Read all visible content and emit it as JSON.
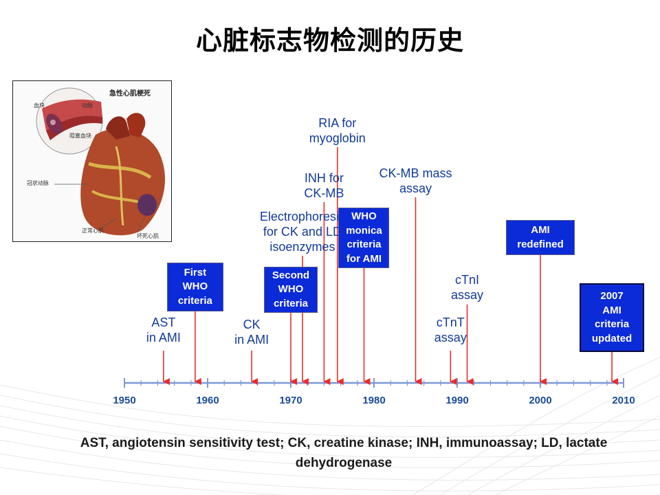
{
  "title": "心脏标志物检测的历史",
  "illustration": {
    "heading": "急性心肌梗死",
    "labels": {
      "blood_clot": "血块",
      "artery_wall": "动脉",
      "plaque": "阻塞血块",
      "coronary_artery": "冠状动脉",
      "healthy_muscle": "正常心肌",
      "damaged_muscle": "坏死心肌"
    }
  },
  "timeline": {
    "axis": {
      "start": 1950,
      "end": 2010,
      "ticks": [
        "1950",
        "1960",
        "1970",
        "1980",
        "1990",
        "2000",
        "2010"
      ]
    },
    "colors": {
      "axis": "#7a9ad6",
      "arrow": "#ee2b2b",
      "text": "#123a9a",
      "box_fill": "#0b2bd8",
      "box_text": "#ffffff"
    },
    "events": [
      {
        "id": "ast",
        "year": 1954.7,
        "style": "text",
        "lines": [
          "AST",
          "in AMI"
        ]
      },
      {
        "id": "first-who",
        "year": 1958.5,
        "style": "box",
        "lines": [
          "First",
          "WHO",
          "criteria"
        ]
      },
      {
        "id": "ck",
        "year": 1965.3,
        "style": "text",
        "lines": [
          "CK",
          "in AMI"
        ]
      },
      {
        "id": "second-who",
        "year": 1970.0,
        "style": "box",
        "lines": [
          "Second",
          "WHO",
          "criteria"
        ]
      },
      {
        "id": "electrophoresis",
        "year": 1971.4,
        "style": "text",
        "lines": [
          "Electrophoresis",
          "for CK and LD",
          "isoenzymes"
        ]
      },
      {
        "id": "inh-ckmb",
        "year": 1974.0,
        "style": "text",
        "lines": [
          "INH for",
          "CK-MB"
        ]
      },
      {
        "id": "ria-myoglobin",
        "year": 1975.6,
        "style": "text",
        "lines": [
          "RIA for",
          "myoglobin"
        ]
      },
      {
        "id": "who-monica",
        "year": 1978.8,
        "style": "box",
        "lines": [
          "WHO",
          "monica",
          "criteria",
          "for AMI"
        ]
      },
      {
        "id": "ckmb-mass",
        "year": 1985.0,
        "style": "text",
        "lines": [
          "CK-MB mass",
          "assay"
        ]
      },
      {
        "id": "ctnt",
        "year": 1989.2,
        "style": "text",
        "lines": [
          "cTnT",
          "assay"
        ]
      },
      {
        "id": "ctni",
        "year": 1991.2,
        "style": "text",
        "lines": [
          "cTnI",
          "assay"
        ]
      },
      {
        "id": "ami-redefined",
        "year": 2000.0,
        "style": "box",
        "lines": [
          "AMI",
          "redefined"
        ]
      },
      {
        "id": "ami-2007",
        "year": 2008.6,
        "style": "box",
        "lines": [
          "2007",
          "AMI",
          "criteria",
          "updated"
        ]
      }
    ]
  },
  "caption": "AST, angiotensin sensitivity test; CK, creatine kinase; INH, immunoassay; LD, lactate dehydrogenase"
}
